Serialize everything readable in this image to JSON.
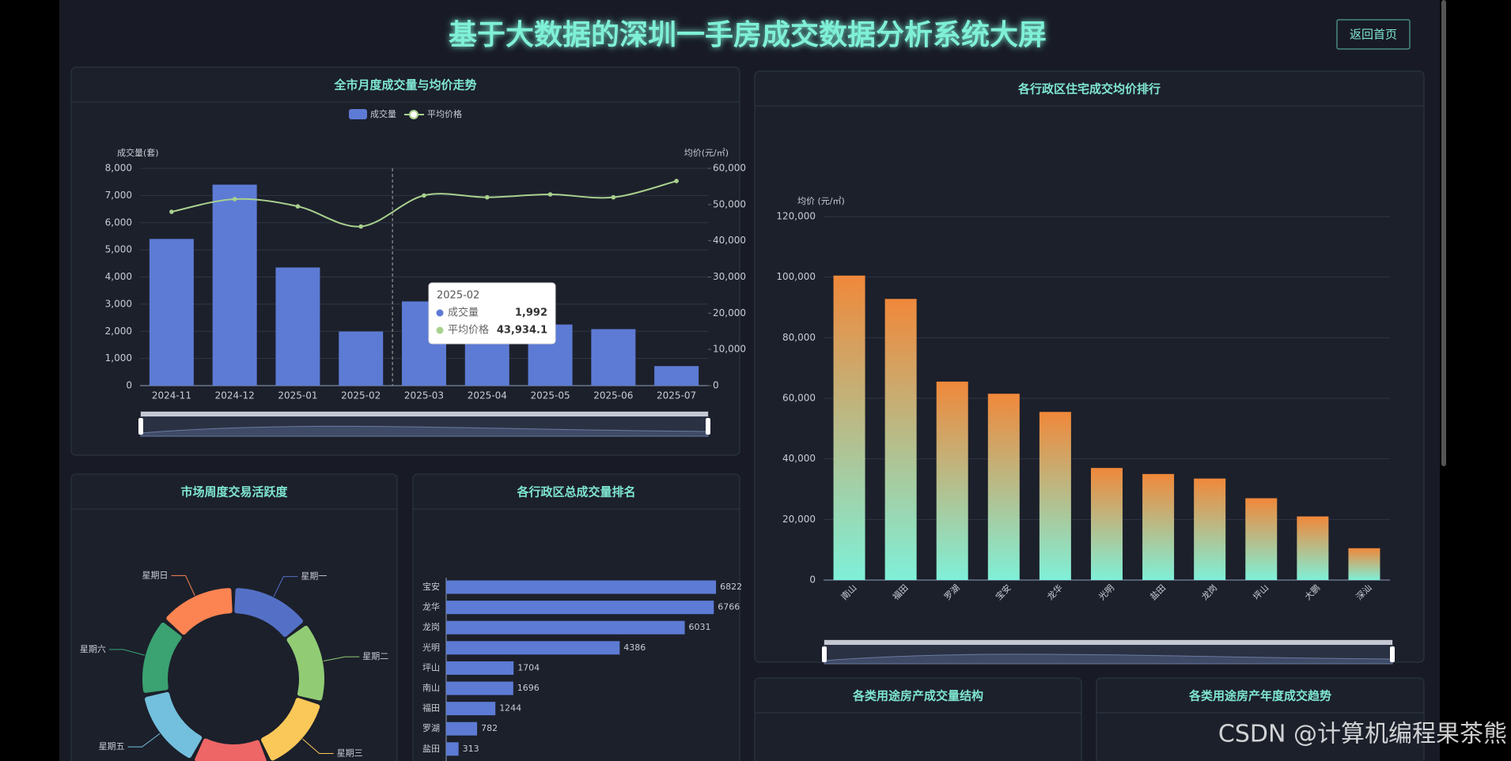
{
  "header": {
    "title": "基于大数据的深圳一手房成交数据分析系统大屏",
    "button": "返回首页"
  },
  "chart_data": [
    {
      "type": "combo",
      "title": "全市月度成交量与均价走势",
      "categories": [
        "2024-11",
        "2024-12",
        "2025-01",
        "2025-02",
        "2025-03",
        "2025-04",
        "2025-05",
        "2025-06",
        "2025-07"
      ],
      "series": [
        {
          "name": "成交量",
          "type": "bar",
          "color": "#5d7bd4",
          "values": [
            5400,
            7400,
            4350,
            1992,
            3100,
            2100,
            2250,
            2080,
            720
          ]
        },
        {
          "name": "平均价格",
          "type": "line",
          "axis": "y2",
          "color": "#a9d18e",
          "values": [
            48000,
            51500,
            49500,
            43934.1,
            52500,
            52000,
            52800,
            52000,
            56500
          ]
        }
      ],
      "ylabel": "成交量(套)",
      "y2label": "均价(元/㎡)",
      "ylim": [
        0,
        8000
      ],
      "yticks": [
        0,
        {
          "value": 1000,
          "label": "1,000"
        },
        {
          "value": 2000,
          "label": "2,000"
        },
        {
          "value": 3000,
          "label": "3,000"
        },
        {
          "value": 4000,
          "label": "4,000"
        },
        {
          "value": 5000,
          "label": "5,000"
        },
        {
          "value": 6000,
          "label": "6,000"
        },
        {
          "value": 7000,
          "label": "7,000"
        },
        {
          "value": 8000,
          "label": "8,000"
        }
      ],
      "y2lim": [
        0,
        60000
      ],
      "y2ticks": [
        0,
        {
          "value": 10000,
          "label": "10,000"
        },
        {
          "value": 20000,
          "label": "20,000"
        },
        {
          "value": 30000,
          "label": "30,000"
        },
        {
          "value": 40000,
          "label": "40,000"
        },
        {
          "value": 50000,
          "label": "50,000"
        },
        {
          "value": 60000,
          "label": "60,000"
        }
      ],
      "grid": true,
      "legend": "top",
      "tooltip": {
        "title": "2025-02",
        "rows": [
          {
            "name": "成交量",
            "label": "1,992"
          },
          {
            "name": "平均价格",
            "label": "43,934.1"
          }
        ]
      }
    },
    {
      "type": "bar",
      "title": "各行政区住宅成交均价排行",
      "ylabel": "均价 (元/㎡)",
      "categories": [
        "南山",
        "福田",
        "罗湖",
        "宝安",
        "龙华",
        "光明",
        "盐田",
        "龙岗",
        "坪山",
        "大鹏",
        "深汕"
      ],
      "values": [
        100500,
        92800,
        65500,
        61500,
        55500,
        37000,
        35000,
        33500,
        27000,
        21000,
        10500
      ],
      "colors": [
        "#f0883a",
        "#7ff0d8"
      ],
      "ylim": [
        0,
        120000
      ],
      "yticks": [
        0,
        {
          "value": 20000,
          "label": "20,000"
        },
        {
          "value": 40000,
          "label": "40,000"
        },
        {
          "value": 60000,
          "label": "60,000"
        },
        {
          "value": 80000,
          "label": "80,000"
        },
        {
          "value": 100000,
          "label": "100,000"
        },
        {
          "value": 120000,
          "label": "120,000"
        }
      ],
      "grid": true
    },
    {
      "type": "pie",
      "title": "市场周度交易活跃度",
      "categories": [
        "星期一",
        "星期二",
        "星期三",
        null,
        "星期五",
        "星期六",
        "星期日"
      ],
      "values": [
        14.5,
        14.8,
        14.2,
        14.0,
        14.6,
        14.1,
        13.8
      ],
      "colors": [
        "#5470c6",
        "#91cc75",
        "#fac858",
        "#ee6666",
        "#73c0de",
        "#3ba272",
        "#fc8452"
      ],
      "donut": true
    },
    {
      "type": "hbar",
      "title": "各行政区总成交量排名",
      "categories": [
        "宝安",
        "龙华",
        "龙岗",
        "光明",
        "坪山",
        "南山",
        "福田",
        "罗湖",
        "盐田"
      ],
      "values": [
        6822,
        6766,
        6031,
        4386,
        1704,
        1696,
        1244,
        782,
        313
      ],
      "color": "#5d7bd4",
      "xlim": [
        0,
        7000
      ]
    }
  ],
  "panels": [
    {
      "title": "各类用途房产成交量结构"
    },
    {
      "title": "各类用途房产年度成交趋势"
    }
  ],
  "watermark": "CSDN @计算机编程果茶熊"
}
